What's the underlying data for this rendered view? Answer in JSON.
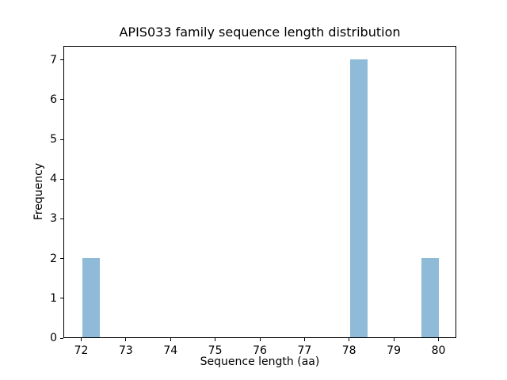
{
  "figure": {
    "background": "#ffffff"
  },
  "chart_data": {
    "type": "bar",
    "chart_kind": "histogram",
    "title": "APIS033 family sequence length distribution",
    "xlabel": "Sequence length (aa)",
    "ylabel": "Frequency",
    "xlim": [
      71.6,
      80.4
    ],
    "ylim": [
      0,
      7.35
    ],
    "xticks": [
      72,
      73,
      74,
      75,
      76,
      77,
      78,
      79,
      80
    ],
    "yticks": [
      0,
      1,
      2,
      3,
      4,
      5,
      6,
      7
    ],
    "bin_width": 0.4,
    "bars": [
      {
        "x_start": 72.0,
        "x_end": 72.4,
        "frequency": 2
      },
      {
        "x_start": 78.0,
        "x_end": 78.4,
        "frequency": 7
      },
      {
        "x_start": 79.6,
        "x_end": 80.0,
        "frequency": 2
      }
    ],
    "bar_color": "#8fbbd9",
    "axis_color": "#000000",
    "text_color": "#000000",
    "grid": false
  }
}
